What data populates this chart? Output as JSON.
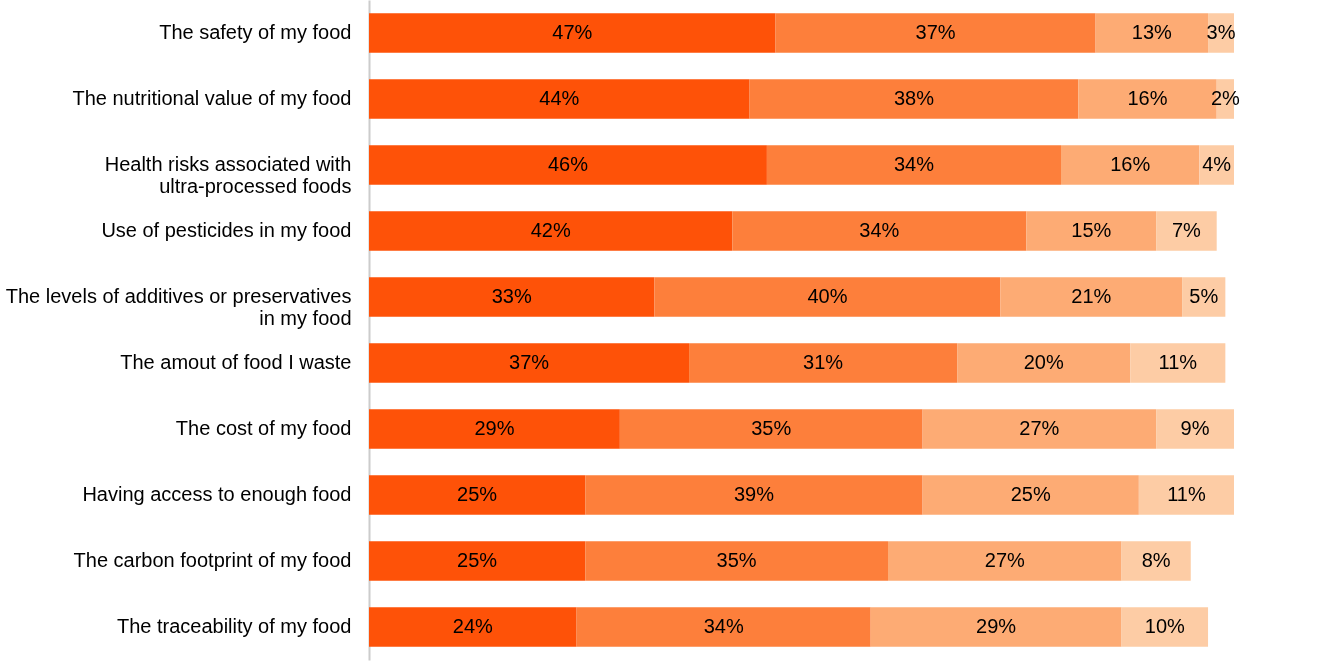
{
  "chart_data": {
    "type": "bar",
    "orientation": "horizontal",
    "stacked": true,
    "categories": [
      "The safety of my food",
      "The nutritional value of my food",
      "Health risks associated with ultra-processed foods",
      "Use of pesticides in my food",
      "The levels of additives or preservatives in my food",
      "The amout of food I waste",
      "The cost of my food",
      "Having access to enough food",
      "The carbon footprint of my food",
      "The traceability of my food"
    ],
    "series": [
      {
        "color": "#fe5208",
        "values": [
          47,
          44,
          46,
          42,
          33,
          37,
          29,
          25,
          25,
          24
        ],
        "value_labels": [
          "47%",
          "44%",
          "46%",
          "42%",
          "33%",
          "37%",
          "29%",
          "25%",
          "25%",
          "24%"
        ]
      },
      {
        "color": "#fd7f3b",
        "values": [
          37,
          38,
          34,
          34,
          40,
          31,
          35,
          39,
          35,
          34
        ],
        "value_labels": [
          "37%",
          "38%",
          "34%",
          "34%",
          "40%",
          "31%",
          "35%",
          "39%",
          "35%",
          "34%"
        ]
      },
      {
        "color": "#fdab74",
        "values": [
          13,
          16,
          16,
          15,
          21,
          20,
          27,
          25,
          27,
          29
        ],
        "value_labels": [
          "13%",
          "16%",
          "16%",
          "15%",
          "21%",
          "20%",
          "27%",
          "25%",
          "27%",
          "29%"
        ]
      },
      {
        "color": "#fdcca5",
        "values": [
          3,
          2,
          4,
          7,
          5,
          11,
          9,
          11,
          8,
          10
        ],
        "value_labels": [
          "3%",
          "2%",
          "4%",
          "7%",
          "5%",
          "11%",
          "9%",
          "11%",
          "8%",
          "10%"
        ]
      }
    ],
    "xlim": [
      0,
      100
    ],
    "grid": false,
    "tick_labels": "y"
  }
}
